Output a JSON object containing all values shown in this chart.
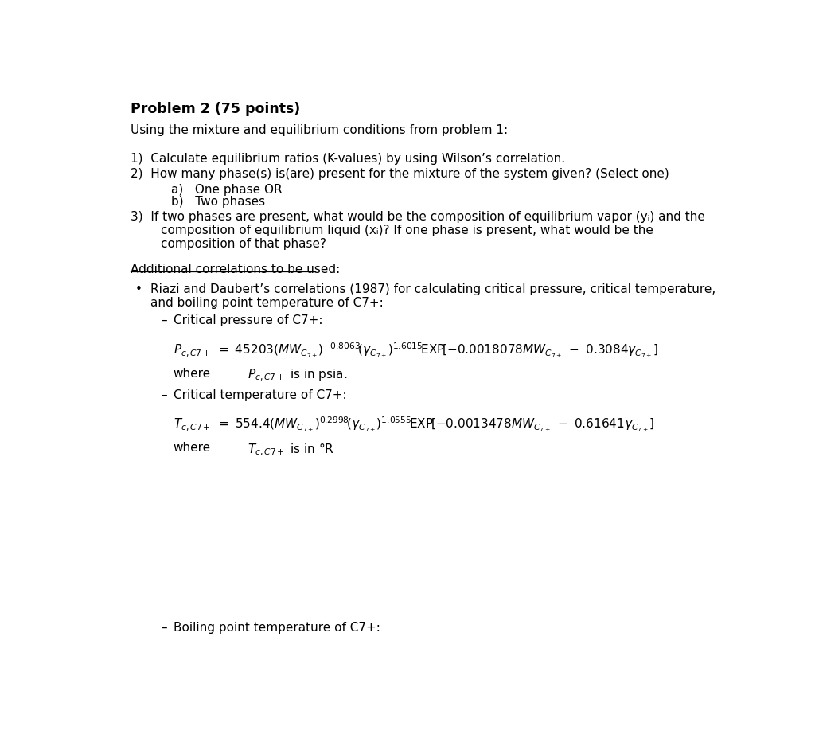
{
  "background_color": "#ffffff",
  "fig_width": 10.24,
  "fig_height": 9.28,
  "dpi": 100,
  "title": "Problem 2 (75 points)",
  "intro": "Using the mixture and equilibrium conditions from problem 1:",
  "item1": "1)  Calculate equilibrium ratios (K-values) by using Wilson’s correlation.",
  "item2": "2)  How many phase(s) is(are) present for the mixture of the system given? (Select one)",
  "item2a": "a)   One phase OR",
  "item2b": "b)   Two phases",
  "item3_line1": "3)  If two phases are present, what would be the composition of equilibrium vapor (yᵢ) and the",
  "item3_line2": "composition of equilibrium liquid (xᵢ)? If one phase is present, what would be the",
  "item3_line3": "composition of that phase?",
  "addl_header": "Additional correlations to be used:",
  "bullet1_line1": "Riazi and Daubert’s correlations (1987) for calculating critical pressure, critical temperature,",
  "bullet1_line2": "and boiling point temperature of C7+:",
  "dash1": "Critical pressure of C7+:",
  "formula1": "$P_{c,C7+}\\ =\\ 45203\\left(MW_{C_{7+}}\\right)^{-0.8063}\\!\\left(\\gamma_{C_{7+}}\\right)^{1.6015}\\!\\mathrm{EXP}\\!\\left[-0.0018078MW_{C_{7+}}\\ -\\ 0.3084\\gamma_{C_{7+}}\\right]$",
  "where1": "where",
  "where1_rhs": "$P_{c,C7+}$ is in psia.",
  "dash2": "Critical temperature of C7+:",
  "formula2": "$T_{c,C7+}\\ =\\ 554.4\\left(MW_{C_{7+}}\\right)^{0.2998}\\!\\left(\\gamma_{C_{7+}}\\right)^{1.0555}\\!\\mathrm{EXP}\\!\\left[-0.0013478MW_{C_{7+}}\\ -\\ 0.61641\\gamma_{C_{7+}}\\right]$",
  "where2": "where",
  "where2_rhs": "$T_{c,C7+}$ is in °R",
  "dash3": "Boiling point temperature of C7+:"
}
